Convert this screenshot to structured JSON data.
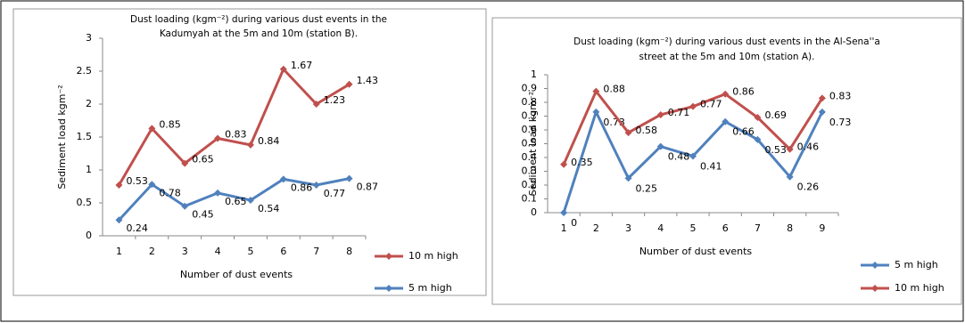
{
  "chart_data": [
    {
      "type": "line",
      "stacked": true,
      "title": [
        "Dust loading (kgm⁻²) during various dust events in the",
        "Kadumyah at the 5m and 10m (station B)."
      ],
      "y_label": "Sediment load kgm⁻²",
      "x_label": "Number of dust events",
      "categories": [
        "1",
        "2",
        "3",
        "4",
        "5",
        "6",
        "7",
        "8"
      ],
      "ylim": [
        0,
        3
      ],
      "yticks": [
        0,
        0.5,
        1,
        1.5,
        2,
        2.5,
        3
      ],
      "show_values": true,
      "series": [
        {
          "name": "10 m high",
          "color": "#c0504d",
          "values": [
            0.53,
            0.85,
            0.65,
            0.83,
            0.84,
            1.67,
            1.23,
            1.43
          ]
        },
        {
          "name": "5 m high",
          "color": "#4f81bd",
          "values": [
            0.24,
            0.78,
            0.45,
            0.65,
            0.54,
            0.86,
            0.77,
            0.87
          ]
        }
      ]
    },
    {
      "type": "line",
      "stacked": false,
      "title": [
        "Dust loading (kgm⁻²) during various dust events in the Al-Sena''a",
        "street  at the 5m and 10m (station A)."
      ],
      "y_label": "Sediment load kgm⁻²",
      "x_label": "Number of dust events",
      "categories": [
        "1",
        "2",
        "3",
        "4",
        "5",
        "6",
        "7",
        "8",
        "9"
      ],
      "ylim": [
        0,
        1
      ],
      "yticks": [
        0,
        0.1,
        0.2,
        0.3,
        0.4,
        0.5,
        0.6,
        0.7,
        0.8,
        0.9,
        1
      ],
      "show_values": true,
      "series": [
        {
          "name": "5 m high",
          "color": "#4f81bd",
          "values": [
            0,
            0.73,
            0.25,
            0.48,
            0.41,
            0.66,
            0.53,
            0.26,
            0.73
          ]
        },
        {
          "name": "10 m high",
          "color": "#c0504d",
          "values": [
            0.35,
            0.88,
            0.58,
            0.71,
            0.77,
            0.86,
            0.69,
            0.46,
            0.83
          ]
        }
      ]
    }
  ]
}
